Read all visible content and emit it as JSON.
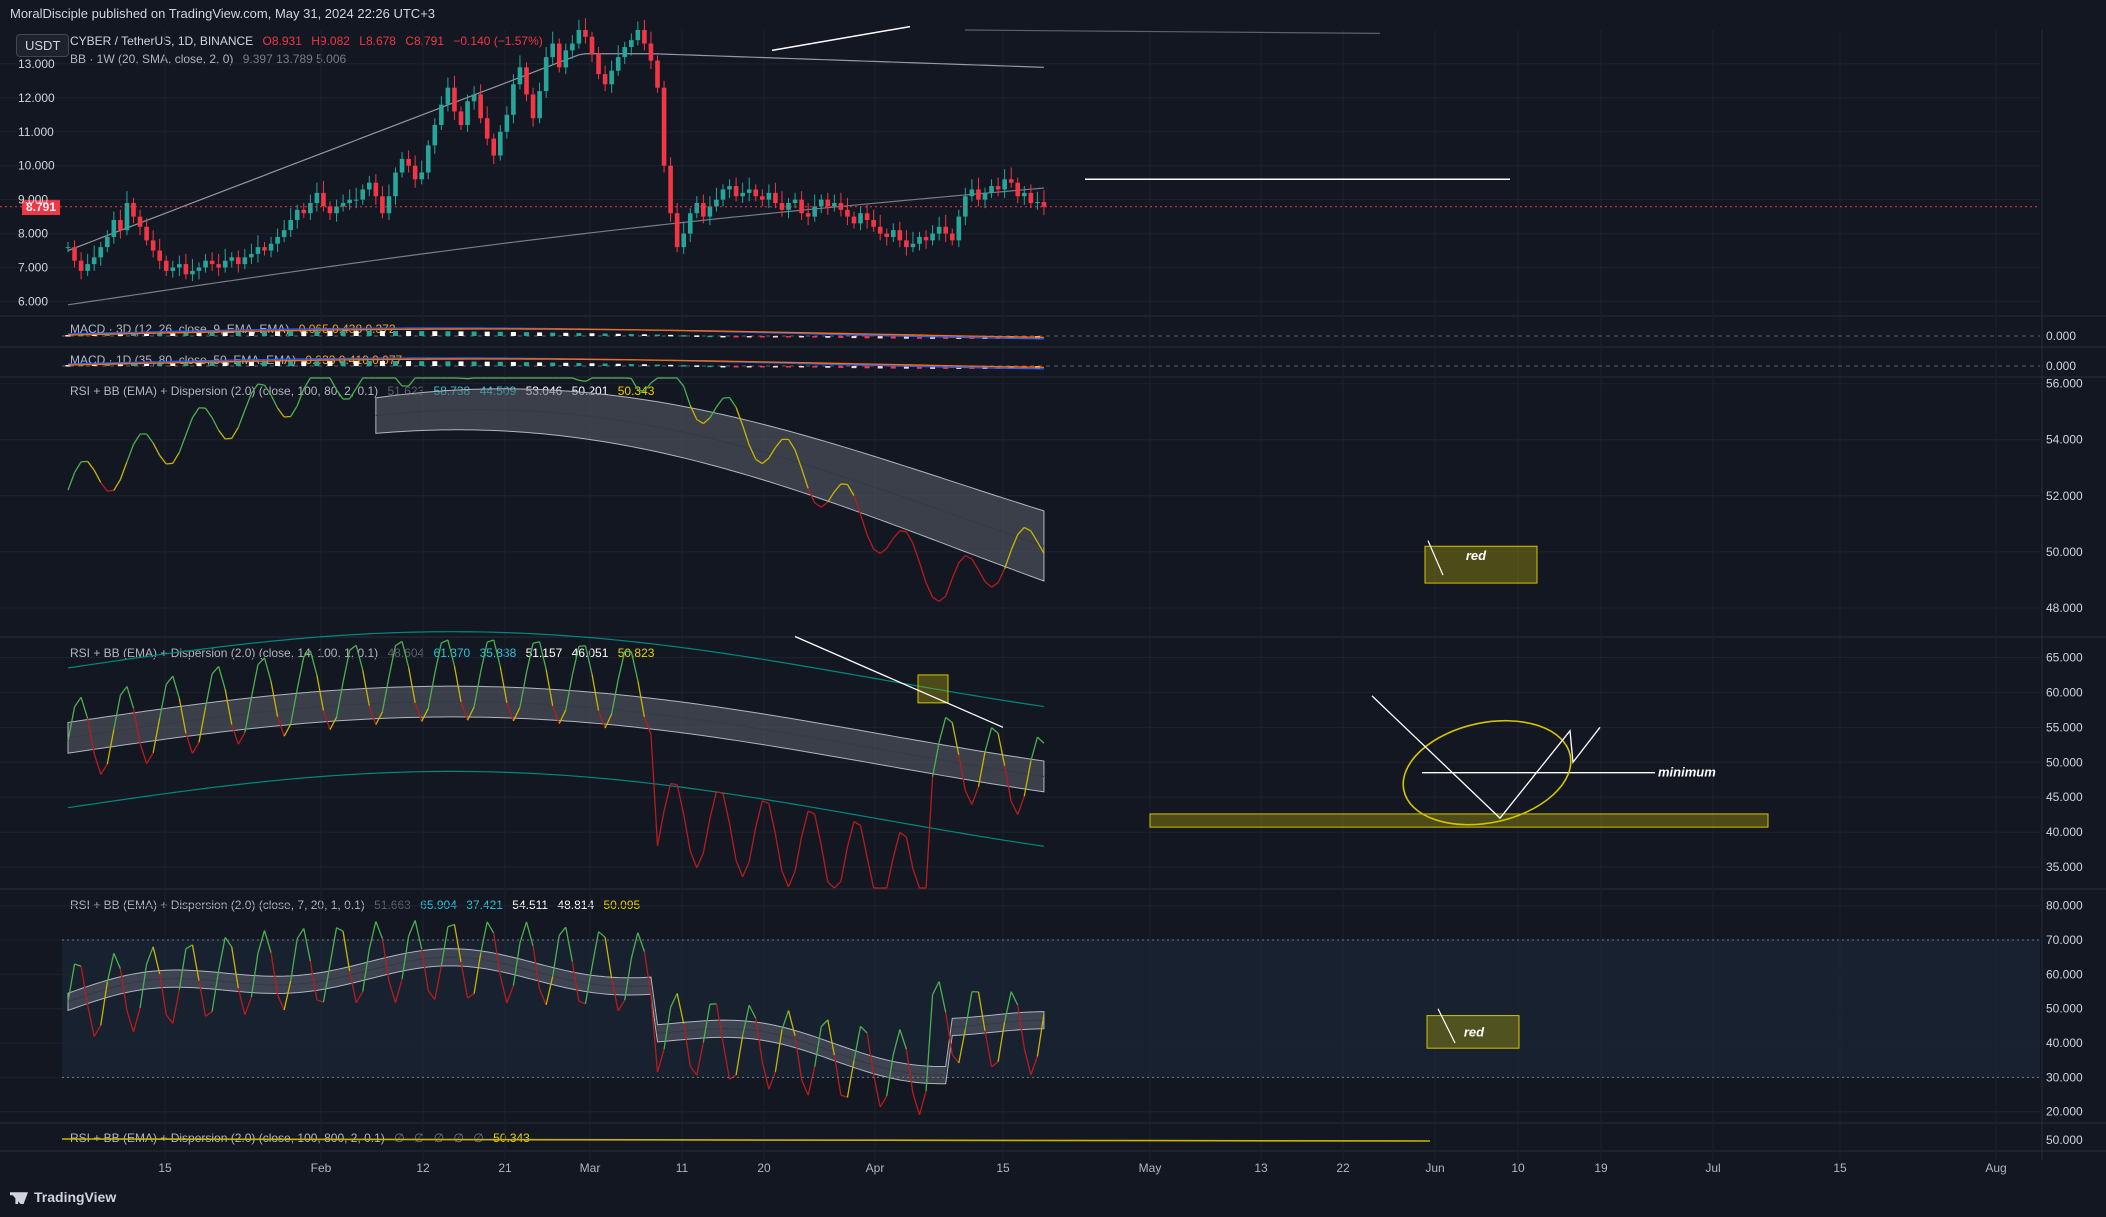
{
  "header": {
    "published": "MoralDisciple published on TradingView.com, May 31, 2024 22:26 UTC+3",
    "currency_button": "USDT"
  },
  "main_legend": {
    "symbol": "CYBER / TetherUS, 1D, BINANCE",
    "o": "O8.931",
    "h": "H9.082",
    "l": "L8.678",
    "c": "C8.791",
    "change": "−0.140 (−1.57%)",
    "bb": "BB · 1W (20, SMA, close, 2, 0)",
    "bb_vals": "9.397  13.789  5.006"
  },
  "current_price": "8.791",
  "pane_legends": {
    "macd3d": "MACD · 3D (12, 26, close, 9, EMA, EMA)",
    "macd3d_vals": "0.065  0.438  0.372",
    "macd1d": "MACD · 1D (35, 80, close, 50, EMA, EMA)",
    "macd1d_vals": "0.333  0.410  0.077",
    "rsi1": "RSI + BB (EMA) + Dispersion (2.0) (close, 100, 80, 2, 0.1)",
    "rsi1_vals": [
      "51.623",
      "58.738",
      "44.509",
      "53.046",
      "50.201",
      "50.343"
    ],
    "rsi2": "RSI + BB (EMA) + Dispersion (2.0) (close, 14, 100, 1, 0.1)",
    "rsi2_vals": [
      "48.604",
      "61.370",
      "35.838",
      "51.157",
      "46.051",
      "50.823"
    ],
    "rsi3": "RSI + BB (EMA) + Dispersion (2.0) (close, 7, 20, 1, 0.1)",
    "rsi3_vals": [
      "51.663",
      "65.904",
      "37.421",
      "54.511",
      "48.814",
      "50.095"
    ],
    "rsi4": "RSI + BB (EMA) + Dispersion (2.0) (close, 100, 800, 2, 0.1)",
    "rsi4_vals": [
      "∅",
      "∅",
      "∅",
      "∅",
      "∅",
      "50.343"
    ]
  },
  "annotations": {
    "red1": "red",
    "minimum": "minimum",
    "red2": "red"
  },
  "footer": {
    "brand": "TradingView"
  },
  "colors": {
    "bg": "#131722",
    "up": "#26a69a",
    "down": "#f23645",
    "grid": "#1e222d",
    "rsi_up": "#4caf50",
    "rsi_mid": "#c8b400",
    "rsi_down": "#b71c1c",
    "band": "#5d606b",
    "highlight": "#d4c400"
  },
  "chart_data": [
    {
      "type": "candlestick",
      "title": "CYBER / TetherUS, 1D, BINANCE",
      "y_ticks": [
        "13.000",
        "12.000",
        "11.000",
        "10.000",
        "9.000",
        "8.000",
        "7.000",
        "6.000"
      ],
      "ylim": [
        5.6,
        14.0
      ],
      "x_ticks": [
        "15",
        "Feb",
        "12",
        "21",
        "Mar",
        "11",
        "20",
        "Apr",
        "15",
        "May",
        "13",
        "22",
        "Jun",
        "10",
        "19",
        "Jul",
        "15",
        "Aug"
      ],
      "close_path": [
        7.6,
        7.2,
        6.9,
        7.1,
        7.3,
        7.6,
        7.9,
        8.4,
        8.1,
        8.9,
        8.5,
        8.2,
        7.8,
        7.5,
        7.2,
        6.9,
        7.0,
        7.1,
        6.8,
        6.9,
        7.0,
        7.2,
        7.1,
        7.0,
        7.2,
        7.3,
        7.1,
        7.3,
        7.4,
        7.6,
        7.5,
        7.7,
        7.9,
        8.1,
        8.4,
        8.7,
        8.6,
        8.9,
        9.2,
        8.8,
        8.6,
        8.8,
        8.9,
        9.0,
        9.0,
        9.3,
        9.5,
        9.1,
        8.6,
        9.1,
        9.8,
        10.2,
        10.0,
        9.6,
        9.8,
        10.6,
        11.2,
        11.8,
        12.3,
        11.6,
        11.2,
        11.9,
        12.1,
        11.4,
        10.8,
        10.3,
        11.0,
        11.5,
        12.4,
        12.9,
        12.1,
        11.4,
        12.2,
        13.2,
        13.6,
        12.9,
        13.4,
        13.6,
        14.0,
        13.8,
        13.3,
        12.7,
        12.4,
        12.8,
        13.2,
        13.5,
        13.7,
        14.0,
        13.6,
        13.1,
        12.3,
        10.0,
        8.6,
        7.6,
        8.0,
        8.6,
        8.9,
        8.5,
        8.8,
        9.0,
        9.3,
        9.4,
        9.1,
        9.2,
        9.3,
        9.1,
        9.0,
        9.2,
        8.9,
        8.7,
        8.9,
        9.0,
        8.6,
        8.5,
        8.8,
        9.0,
        8.8,
        8.9,
        8.7,
        8.5,
        8.3,
        8.6,
        8.4,
        8.2,
        8.0,
        7.9,
        8.1,
        7.8,
        7.6,
        7.7,
        7.9,
        7.8,
        8.0,
        8.2,
        8.0,
        7.8,
        8.5,
        9.1,
        9.3,
        9.0,
        9.2,
        9.4,
        9.3,
        9.6,
        9.5,
        9.1,
        9.2,
        8.9,
        8.931,
        8.791
      ],
      "bb_1w": {
        "basis": 9.397,
        "upper": 13.789,
        "lower": 5.006
      },
      "resistance_level": 9.6
    },
    {
      "type": "bar",
      "title": "MACD · 3D (12, 26, close, 9, EMA, EMA)",
      "values": {
        "histogram": 0.065,
        "macd": 0.438,
        "signal": 0.372
      },
      "y_ticks": [
        "0.000"
      ]
    },
    {
      "type": "bar",
      "title": "MACD · 1D (35, 80, close, 50, EMA, EMA)",
      "values": {
        "histogram": 0.333,
        "macd": 0.41,
        "signal": 0.077
      },
      "y_ticks": [
        "0.000"
      ]
    },
    {
      "type": "line",
      "title": "RSI + BB (EMA) + Dispersion (2.0) (close, 100, 80, 2, 0.1)",
      "y_ticks": [
        "56.000",
        "54.000",
        "52.000",
        "50.000",
        "48.000"
      ],
      "ylim": [
        47.0,
        56.2
      ]
    },
    {
      "type": "line",
      "title": "RSI + BB (EMA) + Dispersion (2.0) (close, 14, 100, 1, 0.1)",
      "y_ticks": [
        "65.000",
        "60.000",
        "55.000",
        "50.000",
        "45.000",
        "40.000",
        "35.000"
      ],
      "ylim": [
        32.0,
        67.5
      ]
    },
    {
      "type": "line",
      "title": "RSI + BB (EMA) + Dispersion (2.0) (close, 7, 20, 1, 0.1)",
      "y_ticks": [
        "80.000",
        "70.000",
        "60.000",
        "50.000",
        "40.000",
        "30.000",
        "20.000"
      ],
      "ylim": [
        17.0,
        84.0
      ]
    },
    {
      "type": "line",
      "title": "RSI + BB (EMA) + Dispersion (2.0) (close, 100, 800, 2, 0.1)",
      "y_ticks": [
        "50.000"
      ]
    }
  ]
}
